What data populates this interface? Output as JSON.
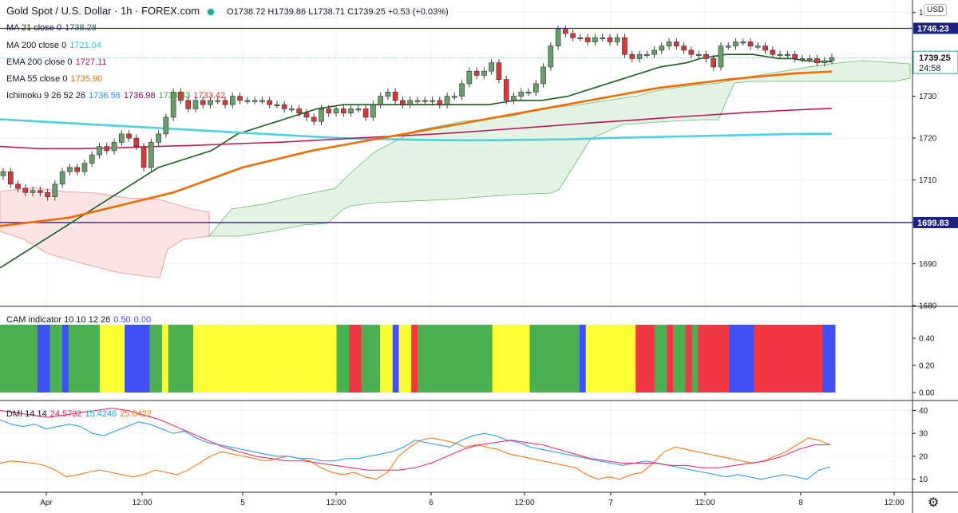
{
  "header": {
    "title": "Gold Spot / U.S. Dollar · 1h · FOREX.com",
    "ohlc": "O1738.72 H1739.86 L1738.71 C1739.25 +0.53 (+0.03%)"
  },
  "currency_label": "USD",
  "legends": {
    "ma21": {
      "label": "MA 21 close 0",
      "value": "1738.28",
      "color": "#1b5e20"
    },
    "ma200": {
      "label": "MA 200 close 0",
      "value": "1721.04",
      "color": "#4dd0e1"
    },
    "ema200": {
      "label": "EMA 200 close 0",
      "value": "1727.11",
      "color": "#c2185b"
    },
    "ema55": {
      "label": "EMA 55 close 0",
      "value": "1735.90",
      "color": "#ef6c00"
    },
    "ichimoku": {
      "label": "Ichimoku 9 26 52 26",
      "v1": "1736.56",
      "v2": "1736.98",
      "v3": "1738.43",
      "v4": "1733.42"
    },
    "cam": {
      "label": "CAM indicator 10 10 12 26",
      "v1": "0.50",
      "v2": "0.00"
    },
    "dmi": {
      "label": "DMI 14 14",
      "v1": "24.5732",
      "v2": "15.4246",
      "v3": "25.0422"
    }
  },
  "price_tags": {
    "upper": "1746.23",
    "lower": "1699.83",
    "current": "1739.25",
    "countdown": "24:58"
  },
  "chart_data": [
    {
      "type": "candlestick",
      "title": "Gold Spot / U.S. Dollar · 1h · FOREX.com",
      "ylim": [
        1680,
        1753
      ],
      "y_ticks": [
        1680,
        1690,
        1700,
        1710,
        1720,
        1730,
        1740,
        1750
      ],
      "x_ticks": [
        "Apr",
        "12:00",
        "5",
        "12:00",
        "6",
        "12:00",
        "7",
        "12:00",
        "8",
        "12:00"
      ],
      "horizontal_lines": [
        1746.23,
        1699.83
      ],
      "current_price": 1739.25,
      "closes": [
        1712,
        1709,
        1708,
        1707,
        1707.5,
        1707,
        1706,
        1709,
        1712,
        1713,
        1712,
        1714,
        1716,
        1718,
        1717,
        1719,
        1721,
        1720,
        1718,
        1713,
        1719,
        1721,
        1725,
        1731,
        1729,
        1727,
        1729,
        1728,
        1729,
        1729,
        1728,
        1730,
        1729,
        1729,
        1729,
        1729,
        1728,
        1728,
        1727,
        1727,
        1726,
        1725,
        1724,
        1727,
        1726,
        1727,
        1726,
        1727,
        1727,
        1725,
        1728,
        1730,
        1731,
        1729,
        1728,
        1729,
        1729,
        1729,
        1729,
        1728,
        1730,
        1730,
        1733,
        1736,
        1735,
        1736,
        1738,
        1734,
        1729,
        1730,
        1731,
        1731,
        1733,
        1737,
        1742,
        1746,
        1745,
        1744,
        1744,
        1743,
        1744,
        1744,
        1743,
        1744,
        1740,
        1739,
        1740,
        1740,
        1741,
        1742,
        1743,
        1742,
        1741,
        1740,
        1740,
        1739,
        1737,
        1742,
        1742,
        1743,
        1743,
        1742,
        1742,
        1741,
        1740,
        1740,
        1740,
        1739,
        1739,
        1739,
        1738,
        1738.5,
        1739.25
      ],
      "series": [
        {
          "name": "MA 21",
          "color": "#1b5e20",
          "values": [
            1689,
            1691,
            1693,
            1695,
            1697,
            1699,
            1701,
            1703,
            1705,
            1707,
            1709,
            1711,
            1713,
            1714,
            1715,
            1716,
            1717,
            1719,
            1721,
            1722,
            1723,
            1724,
            1725,
            1726,
            1727,
            1727.5,
            1728,
            1728,
            1728,
            1728,
            1728,
            1728,
            1728,
            1728,
            1728,
            1728,
            1728,
            1728,
            1728.5,
            1729,
            1729,
            1729,
            1729.5,
            1730,
            1731,
            1732,
            1733,
            1734,
            1735,
            1736,
            1737,
            1737.5,
            1738,
            1739,
            1739.5,
            1740,
            1740,
            1740,
            1739.5,
            1739,
            1739,
            1738.5,
            1738.3,
            1738.28
          ]
        },
        {
          "name": "MA 200",
          "color": "#4dd0e1",
          "values": [
            1724.5,
            1724,
            1723.5,
            1723,
            1722.5,
            1722,
            1721.5,
            1721,
            1720.5,
            1720,
            1719.8,
            1719.6,
            1719.5,
            1719.5,
            1719.6,
            1719.7,
            1720,
            1720.2,
            1720.4,
            1720.6,
            1720.8,
            1721,
            1721.04
          ]
        },
        {
          "name": "EMA 200",
          "color": "#c2185b",
          "values": [
            1718,
            1717.5,
            1717.5,
            1717.7,
            1718,
            1718.3,
            1718.7,
            1719,
            1719.5,
            1720,
            1720.5,
            1721,
            1721.6,
            1722.3,
            1723,
            1723.7,
            1724.3,
            1725,
            1725.6,
            1726.2,
            1726.7,
            1727.11
          ]
        },
        {
          "name": "EMA 55",
          "color": "#ef6c00",
          "values": [
            1699,
            1700,
            1701,
            1703,
            1705,
            1707,
            1710,
            1713,
            1715,
            1717,
            1718.5,
            1720,
            1721.5,
            1723,
            1724.5,
            1726,
            1727.5,
            1729,
            1730.5,
            1732,
            1733,
            1734,
            1734.8,
            1735.5,
            1735.9
          ]
        }
      ]
    },
    {
      "type": "bar",
      "title": "CAM indicator 10 10 12 26",
      "ylim": [
        0,
        0.5
      ],
      "y_ticks": [
        0.0,
        0.2,
        0.4
      ],
      "color_codes": {
        "G": "#4caf50",
        "B": "#3f51f5",
        "Y": "#ffff33",
        "R": "#f23645"
      },
      "colors": "GGGGGGBBGGBGGGGGYYYYBBBBGGYGGGGYYYYYYYYYYYYYYYYYYYYYYYGGRRGGGYYBYYRGGGGGGGGGGGGYYYYYYGGGGGGGGBYYYYYYYYRRRGGRGGRGRRRRRBBBBRRRRRRRRRRRBB",
      "value": 0.5
    },
    {
      "type": "line",
      "title": "DMI 14 14",
      "ylim": [
        5,
        44
      ],
      "y_ticks": [
        10,
        20,
        30,
        40
      ],
      "series": [
        {
          "name": "+DI",
          "color": "#ff6d00",
          "values": [
            17,
            18,
            17.5,
            17,
            16,
            14,
            11,
            12,
            13,
            14,
            13,
            12,
            11,
            12,
            14,
            13,
            12,
            14,
            17,
            20,
            22,
            21,
            20,
            19,
            18,
            19,
            20,
            19,
            18,
            15,
            13,
            12,
            13,
            11,
            10,
            13,
            20,
            24,
            27,
            28,
            27,
            26,
            24,
            25,
            24,
            23,
            21,
            20,
            19,
            18,
            17,
            16,
            15,
            12,
            10,
            11,
            10,
            12,
            13,
            17,
            22,
            24,
            23,
            22,
            21,
            20,
            19,
            18,
            17,
            18,
            20,
            22,
            25,
            28,
            27,
            25
          ]
        },
        {
          "name": "-DI",
          "color": "#2196f3",
          "values": [
            36,
            34,
            33,
            34,
            32,
            33,
            34,
            33,
            30,
            29,
            31,
            33,
            35,
            34,
            32,
            30,
            31,
            28,
            26,
            25,
            24,
            23,
            22,
            21,
            20,
            20,
            19,
            19,
            18,
            18,
            19,
            19,
            20,
            21,
            22,
            24,
            27,
            26,
            25,
            24,
            27,
            29,
            30,
            29,
            27,
            26,
            24,
            23,
            22,
            21,
            20,
            19,
            18,
            17,
            16,
            17,
            18,
            17,
            16,
            15,
            14,
            13,
            12,
            11,
            12,
            11,
            10,
            11,
            12,
            11,
            10,
            14,
            15.4246
          ]
        },
        {
          "name": "ADX",
          "color": "#e91e63",
          "values": [
            40,
            39,
            38,
            37,
            38,
            39,
            40,
            41,
            40,
            38,
            36,
            33,
            30,
            27,
            24,
            22,
            20,
            19,
            18,
            18,
            17,
            16,
            15,
            14,
            14,
            14,
            15,
            17,
            20,
            23,
            25,
            26,
            27,
            26,
            25,
            23,
            21,
            19,
            18,
            17,
            17,
            17,
            16,
            16,
            15,
            15,
            16,
            17,
            18,
            20,
            23,
            25,
            25.0422
          ]
        }
      ]
    }
  ]
}
